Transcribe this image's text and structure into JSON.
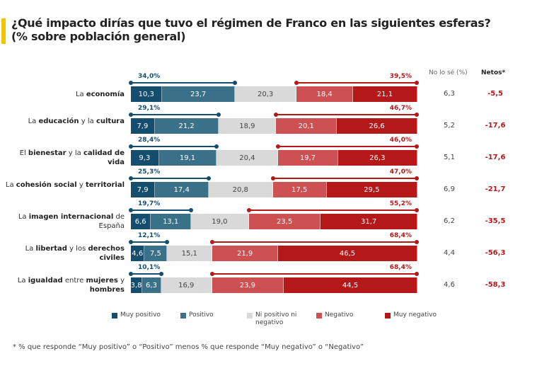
{
  "title": {
    "line1": "¿Qué impacto dirías que tuvo el régimen de Franco en las siguientes esferas?",
    "line2": "(% sobre población general)"
  },
  "chart_data": {
    "type": "bar",
    "orientation": "horizontal-stacked",
    "title": "¿Qué impacto dirías que tuvo el régimen de Franco en las siguientes esferas? (% sobre población general)",
    "series_names": [
      "Muy positivo",
      "Positivo",
      "Ni positivo ni negativo",
      "Negativo",
      "Muy negativo"
    ],
    "colors": [
      "#154d6e",
      "#3b7089",
      "#d9d9d9",
      "#cd5052",
      "#b41818"
    ],
    "columns": {
      "dk": "No lo sé (%)",
      "net": "Netos*"
    },
    "rows": [
      {
        "label": [
          {
            "t": "La ",
            "b": false
          },
          {
            "t": "economía",
            "b": true
          }
        ],
        "values": [
          10.3,
          23.7,
          20.3,
          18.4,
          21.1
        ],
        "labels": [
          "10,3",
          "23,7",
          "20,3",
          "18,4",
          "21,1"
        ],
        "pos_total": "34,0%",
        "neg_total": "39,5%",
        "dk": "6,3",
        "net": "-5,5"
      },
      {
        "label": [
          {
            "t": "La ",
            "b": false
          },
          {
            "t": "educación",
            "b": true
          },
          {
            "t": " y la ",
            "b": false
          },
          {
            "t": "cultura",
            "b": true
          }
        ],
        "values": [
          7.9,
          21.2,
          18.9,
          20.1,
          26.6
        ],
        "labels": [
          "7,9",
          "21,2",
          "18,9",
          "20,1",
          "26,6"
        ],
        "pos_total": "29,1%",
        "neg_total": "46,7%",
        "dk": "5,2",
        "net": "-17,6"
      },
      {
        "label": [
          {
            "t": "El ",
            "b": false
          },
          {
            "t": "bienestar",
            "b": true
          },
          {
            "t": " y la ",
            "b": false
          },
          {
            "t": "calidad de vida",
            "b": true
          }
        ],
        "values": [
          9.3,
          19.1,
          20.4,
          19.7,
          26.3
        ],
        "labels": [
          "9,3",
          "19,1",
          "20,4",
          "19,7",
          "26,3"
        ],
        "pos_total": "28,4%",
        "neg_total": "46,0%",
        "dk": "5,1",
        "net": "-17,6"
      },
      {
        "label": [
          {
            "t": "La ",
            "b": false
          },
          {
            "t": "cohesión social",
            "b": true
          },
          {
            "t": " y ",
            "b": false
          },
          {
            "t": "territorial",
            "b": true
          }
        ],
        "values": [
          7.9,
          17.4,
          20.8,
          17.5,
          29.5
        ],
        "labels": [
          "7,9",
          "17,4",
          "20,8",
          "17,5",
          "29,5"
        ],
        "pos_total": "25,3%",
        "neg_total": "47,0%",
        "dk": "6,9",
        "net": "-21,7"
      },
      {
        "label": [
          {
            "t": "La ",
            "b": false
          },
          {
            "t": "imagen internacional",
            "b": true
          },
          {
            "t": " de España",
            "b": false
          }
        ],
        "values": [
          6.6,
          13.1,
          19.0,
          23.5,
          31.7
        ],
        "labels": [
          "6,6",
          "13,1",
          "19,0",
          "23,5",
          "31,7"
        ],
        "pos_total": "19,7%",
        "neg_total": "55,2%",
        "dk": "6,2",
        "net": "-35,5"
      },
      {
        "label": [
          {
            "t": "La ",
            "b": false
          },
          {
            "t": "libertad",
            "b": true
          },
          {
            "t": " y los ",
            "b": false
          },
          {
            "t": "derechos civiles",
            "b": true
          }
        ],
        "values": [
          4.6,
          7.5,
          15.1,
          21.9,
          46.5
        ],
        "labels": [
          "4,6",
          "7,5",
          "15,1",
          "21,9",
          "46,5"
        ],
        "pos_total": "12,1%",
        "neg_total": "68,4%",
        "dk": "4,4",
        "net": "-56,3"
      },
      {
        "label": [
          {
            "t": "La ",
            "b": false
          },
          {
            "t": "igualdad",
            "b": true
          },
          {
            "t": " entre ",
            "b": false
          },
          {
            "t": "mujeres",
            "b": true
          },
          {
            "t": " y ",
            "b": false
          },
          {
            "t": "hombres",
            "b": true
          }
        ],
        "values": [
          3.8,
          6.3,
          16.9,
          23.9,
          44.5
        ],
        "labels": [
          "3,8",
          "6,3",
          "16,9",
          "23,9",
          "44,5"
        ],
        "pos_total": "10,1%",
        "neg_total": "68,4%",
        "dk": "4,6",
        "net": "-58,3"
      }
    ],
    "legend_position": "bottom",
    "footnote": "* % que responde “Muy positivo” o “Positivo” menos % que responde “Muy negativo” o “Negativo”"
  }
}
